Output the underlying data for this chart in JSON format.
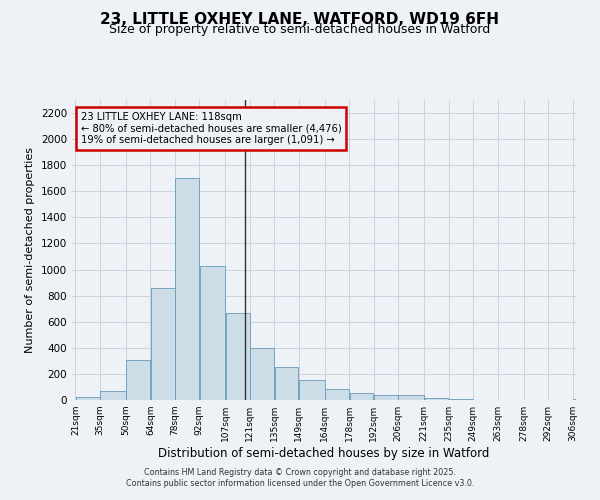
{
  "title": "23, LITTLE OXHEY LANE, WATFORD, WD19 6FH",
  "subtitle": "Size of property relative to semi-detached houses in Watford",
  "xlabel": "Distribution of semi-detached houses by size in Watford",
  "ylabel": "Number of semi-detached properties",
  "footer_line1": "Contains HM Land Registry data © Crown copyright and database right 2025.",
  "footer_line2": "Contains public sector information licensed under the Open Government Licence v3.0.",
  "annotation_line1": "23 LITTLE OXHEY LANE: 118sqm",
  "annotation_line2": "← 80% of semi-detached houses are smaller (4,476)",
  "annotation_line3": "19% of semi-detached houses are larger (1,091) →",
  "property_size": 118,
  "bar_edges": [
    21,
    35,
    50,
    64,
    78,
    92,
    107,
    121,
    135,
    149,
    164,
    178,
    192,
    206,
    221,
    235,
    249,
    263,
    278,
    292,
    306
  ],
  "bar_heights": [
    20,
    70,
    310,
    860,
    1700,
    1030,
    670,
    400,
    250,
    150,
    85,
    50,
    40,
    35,
    15,
    5,
    3,
    2,
    1,
    1,
    10
  ],
  "bar_color": "#ccdde8",
  "bar_edge_color": "#6699bb",
  "vline_color": "#333333",
  "vline_x": 118,
  "ylim": [
    0,
    2300
  ],
  "yticks": [
    0,
    200,
    400,
    600,
    800,
    1000,
    1200,
    1400,
    1600,
    1800,
    2000,
    2200
  ],
  "bg_color": "#eef2f7",
  "grid_color": "#c5cdd8",
  "annotation_box_color": "#cc0000",
  "title_fontsize": 11,
  "subtitle_fontsize": 9
}
